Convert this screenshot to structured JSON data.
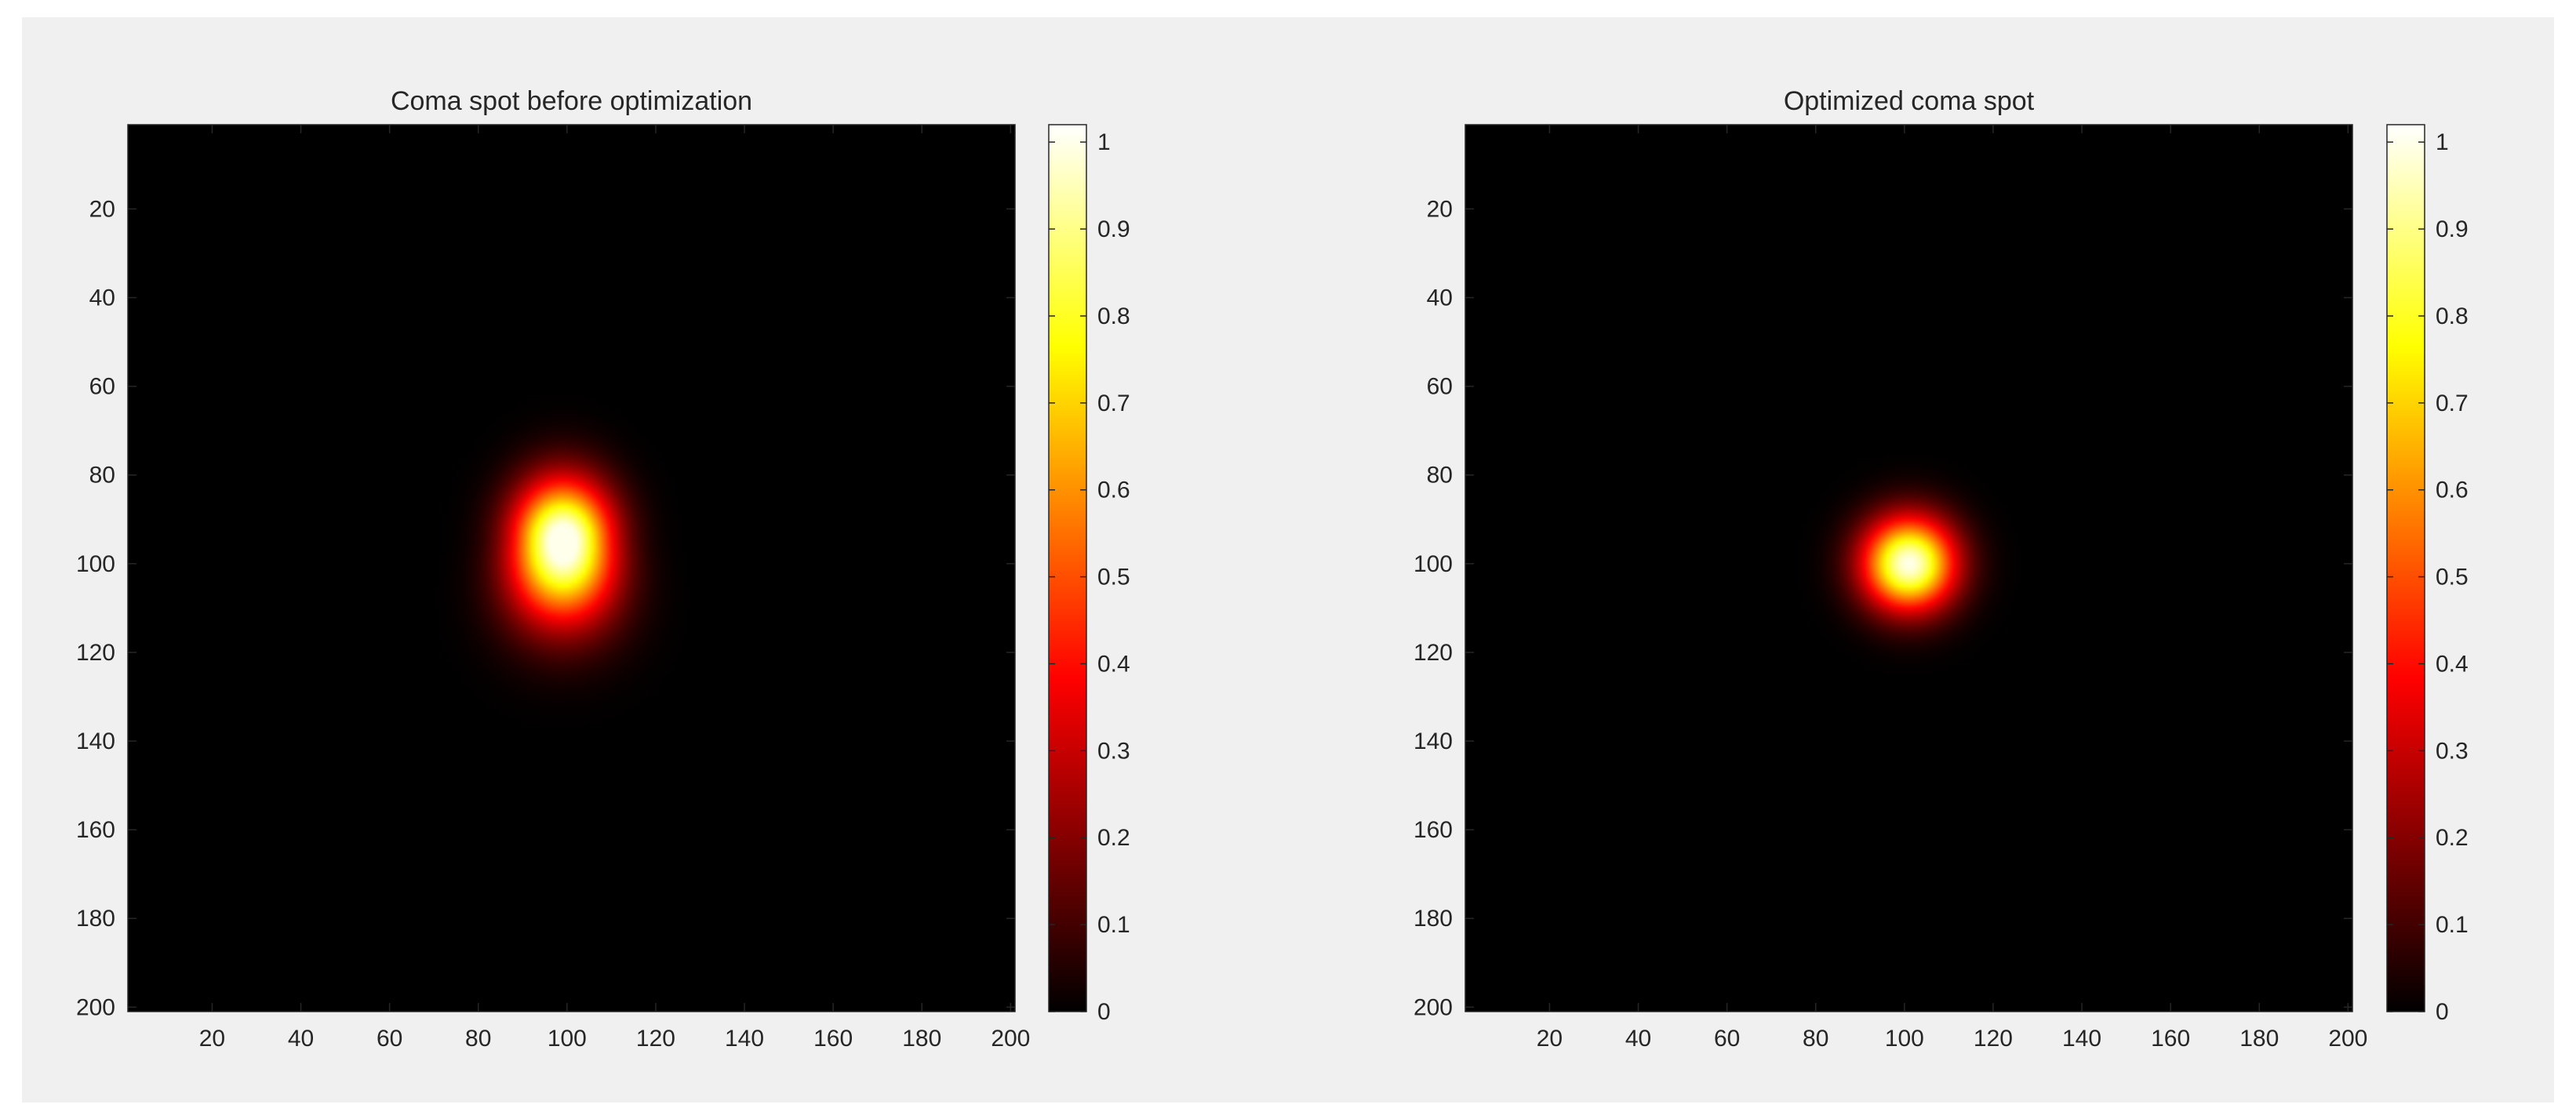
{
  "chart_data": [
    {
      "type": "heatmap",
      "title": "Coma spot before optimization",
      "xlabel": "",
      "ylabel": "",
      "colormap": "hot",
      "xlim": [
        1,
        201
      ],
      "ylim": [
        1,
        201
      ],
      "y_reversed": true,
      "x_ticks": [
        20,
        40,
        60,
        80,
        100,
        120,
        140,
        160,
        180,
        200
      ],
      "y_ticks": [
        20,
        40,
        60,
        80,
        100,
        120,
        140,
        160,
        180,
        200
      ],
      "colorbar": {
        "range": [
          0,
          1.02
        ],
        "ticks": [
          0,
          0.1,
          0.2,
          0.3,
          0.4,
          0.5,
          0.6,
          0.7,
          0.8,
          0.9,
          1
        ]
      },
      "spot": {
        "peak_value": 1.0,
        "center_x": 99,
        "center_y": 95,
        "shape": "coma (pear-shaped, extended toward larger row index)",
        "approx_extent_x": [
          82,
          118
        ],
        "approx_extent_y": [
          72,
          124
        ]
      }
    },
    {
      "type": "heatmap",
      "title": "Optimized coma spot",
      "xlabel": "",
      "ylabel": "",
      "colormap": "hot",
      "xlim": [
        1,
        201
      ],
      "ylim": [
        1,
        201
      ],
      "y_reversed": true,
      "x_ticks": [
        20,
        40,
        60,
        80,
        100,
        120,
        140,
        160,
        180,
        200
      ],
      "y_ticks": [
        20,
        40,
        60,
        80,
        100,
        120,
        140,
        160,
        180,
        200
      ],
      "colorbar": {
        "range": [
          0,
          1.02
        ],
        "ticks": [
          0,
          0.1,
          0.2,
          0.3,
          0.4,
          0.5,
          0.6,
          0.7,
          0.8,
          0.9,
          1
        ]
      },
      "spot": {
        "peak_value": 1.0,
        "center_x": 101,
        "center_y": 100,
        "shape": "circular",
        "approx_extent_x": [
          83,
          119
        ],
        "approx_extent_y": [
          82,
          118
        ]
      }
    }
  ]
}
